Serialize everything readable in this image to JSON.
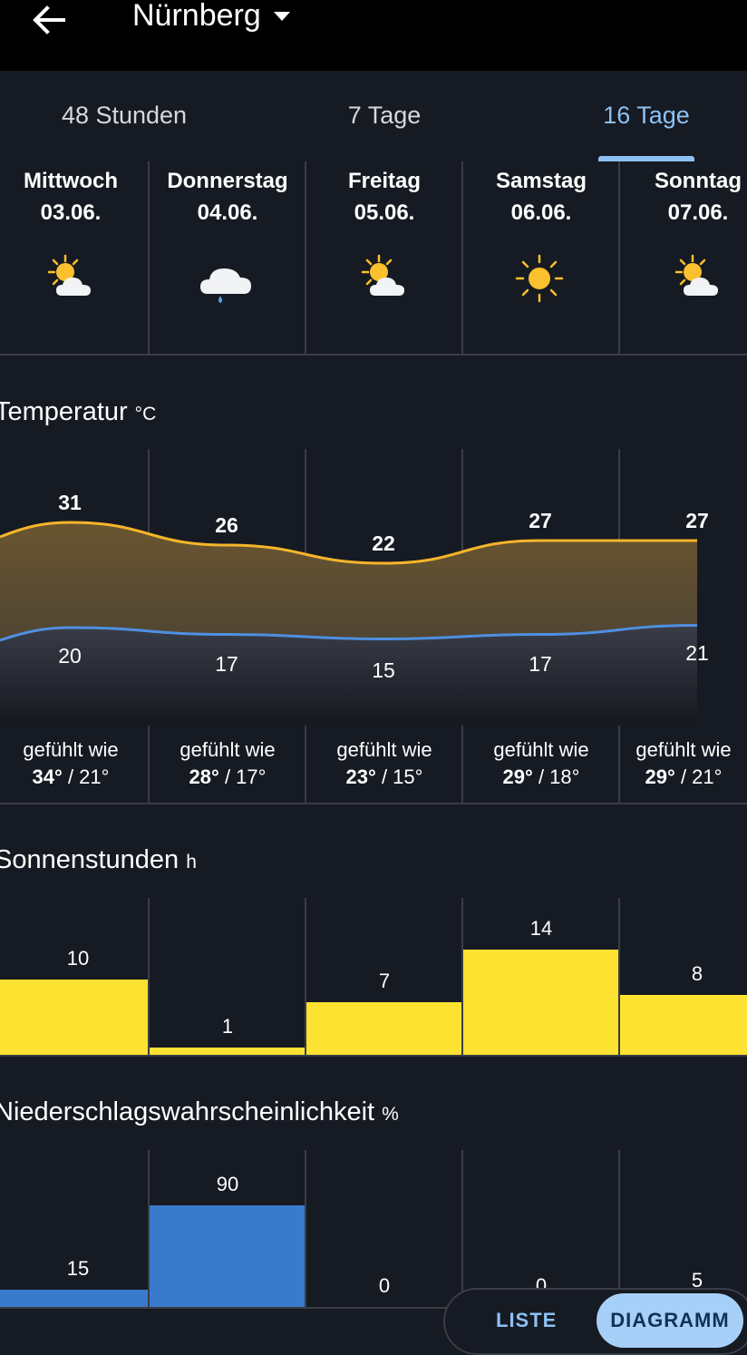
{
  "topbar": {
    "city": "Nürnberg",
    "back_icon": "arrow-left-icon",
    "dropdown_icon": "caret-down-icon"
  },
  "tabs": [
    {
      "label": "48 Stunden",
      "active": false
    },
    {
      "label": "7 Tage",
      "active": false
    },
    {
      "label": "16 Tage",
      "active": true
    }
  ],
  "days": [
    {
      "weekday": "Mittwoch",
      "date": "03.06.",
      "icon": "sun-cloud-icon",
      "max": "31",
      "min": "20",
      "feels_max": "34°",
      "feels_min": "/ 21°",
      "sun": "10",
      "rain": "15"
    },
    {
      "weekday": "Donnerstag",
      "date": "04.06.",
      "icon": "cloud-rain-icon",
      "max": "26",
      "min": "17",
      "feels_max": "28°",
      "feels_min": "/ 17°",
      "sun": "1",
      "rain": "90"
    },
    {
      "weekday": "Freitag",
      "date": "05.06.",
      "icon": "sun-cloud-icon",
      "max": "22",
      "min": "15",
      "feels_max": "23°",
      "feels_min": "/ 15°",
      "sun": "7",
      "rain": "0"
    },
    {
      "weekday": "Samstag",
      "date": "06.06.",
      "icon": "sun-icon",
      "max": "27",
      "min": "17",
      "feels_max": "29°",
      "feels_min": "/ 18°",
      "sun": "14",
      "rain": "0"
    },
    {
      "weekday": "Sonntag",
      "date": "07.06.",
      "icon": "sun-cloud-icon",
      "max": "27",
      "min": "21",
      "feels_max": "29°",
      "feels_min": "/ 21°",
      "sun": "8",
      "rain": "5"
    }
  ],
  "feels_label": "gefühlt wie",
  "sections": {
    "temperature": {
      "title": "Temperatur",
      "unit": "°C"
    },
    "sunshine": {
      "title": "Sonnenstunden",
      "unit": "h"
    },
    "precip": {
      "title": "Niederschlagswahrscheinlichkeit",
      "unit": "%"
    }
  },
  "colors": {
    "max_line": "#f5b52a",
    "min_line": "#4f8fe0",
    "sun_bar": "#fde231",
    "rain_bar": "#3a7acc",
    "accent": "#8cc1f4"
  },
  "view_toggle": {
    "list": "LISTE",
    "chart": "DIAGRAMM",
    "active": "DIAGRAMM"
  },
  "chart_data": [
    {
      "type": "line",
      "categories": [
        "03.06.",
        "04.06.",
        "05.06.",
        "06.06.",
        "07.06."
      ],
      "series": [
        {
          "values": [
            31,
            26,
            22,
            27,
            27
          ]
        },
        {
          "values": [
            20,
            17,
            15,
            17,
            21
          ]
        }
      ]
    },
    {
      "type": "bar",
      "categories": [
        "03.06.",
        "04.06.",
        "05.06.",
        "06.06.",
        "07.06."
      ],
      "values": [
        10,
        1,
        7,
        14,
        8
      ]
    },
    {
      "type": "bar",
      "categories": [
        "03.06.",
        "04.06.",
        "05.06.",
        "06.06.",
        "07.06."
      ],
      "values": [
        15,
        90,
        0,
        0,
        5
      ]
    }
  ]
}
